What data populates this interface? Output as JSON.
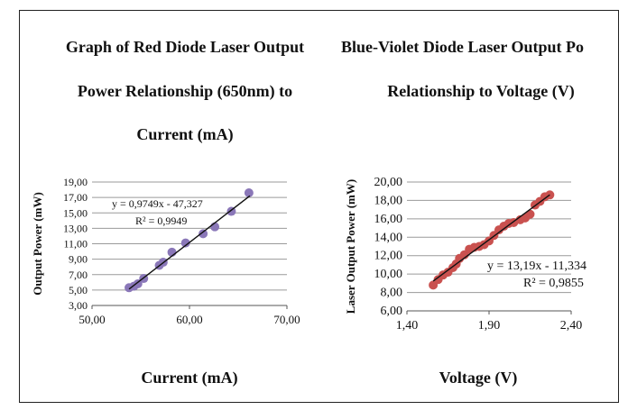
{
  "chart_data": [
    {
      "type": "scatter",
      "title_lines": [
        "Graph of Red Diode Laser Output",
        "Power Relationship (650nm) to",
        "Current (mA)"
      ],
      "xlabel": "Current (mA)",
      "ylabel": "Output Power (mW)",
      "xlim": [
        50,
        70
      ],
      "ylim": [
        3,
        19
      ],
      "xticks": [
        "50,00",
        "60,00",
        "70,00"
      ],
      "yticks": [
        "3,00",
        "5,00",
        "7,00",
        "9,00",
        "11,00",
        "13,00",
        "15,00",
        "17,00",
        "19,00"
      ],
      "grid": true,
      "marker_color": "#8a77b8",
      "line_color": "#111111",
      "trendline": {
        "slope": 0.9749,
        "intercept": -47.327,
        "x_range": [
          53.8,
          66.2
        ]
      },
      "equation": "y = 0,9749x - 47,327",
      "r_squared": "R² = 0,9949",
      "series": [
        {
          "x": [
            53.8,
            54.3,
            54.7,
            55.3,
            56.9,
            57.3,
            58.2,
            59.6,
            61.4,
            62.6,
            64.3,
            66.1
          ],
          "y": [
            5.3,
            5.5,
            5.8,
            6.5,
            8.2,
            8.6,
            9.9,
            11.1,
            12.3,
            13.2,
            15.2,
            17.6
          ]
        }
      ]
    },
    {
      "type": "scatter",
      "title_lines": [
        "Blue-Violet Diode Laser Output Po",
        "Relationship to Voltage (V)"
      ],
      "xlabel": "Voltage (V)",
      "ylabel": "Laser Output Power (mW)",
      "xlim": [
        1.4,
        2.4
      ],
      "ylim": [
        6,
        20
      ],
      "xticks": [
        "1,40",
        "1,90",
        "2,40"
      ],
      "yticks": [
        "6,00",
        "8,00",
        "10,00",
        "12,00",
        "14,00",
        "16,00",
        "18,00",
        "20,00"
      ],
      "grid": true,
      "marker_color": "#c9514f",
      "line_color": "#111111",
      "trendline": {
        "slope": 13.19,
        "intercept": -11.334,
        "x_range": [
          1.56,
          2.27
        ]
      },
      "equation": "y = 13,19x - 11,334",
      "r_squared": "R² = 0,9855",
      "series": [
        {
          "x": [
            1.56,
            1.59,
            1.62,
            1.65,
            1.68,
            1.7,
            1.72,
            1.75,
            1.78,
            1.81,
            1.84,
            1.87,
            1.9,
            1.93,
            1.96,
            1.99,
            2.02,
            2.05,
            2.09,
            2.12,
            2.15,
            2.18,
            2.21,
            2.24,
            2.27
          ],
          "y": [
            8.8,
            9.4,
            9.9,
            10.2,
            10.7,
            11.1,
            11.7,
            12.1,
            12.7,
            12.9,
            13.0,
            13.2,
            13.6,
            14.2,
            14.8,
            15.2,
            15.5,
            15.6,
            15.9,
            16.1,
            16.5,
            17.5,
            17.9,
            18.4,
            18.6
          ]
        }
      ]
    }
  ]
}
